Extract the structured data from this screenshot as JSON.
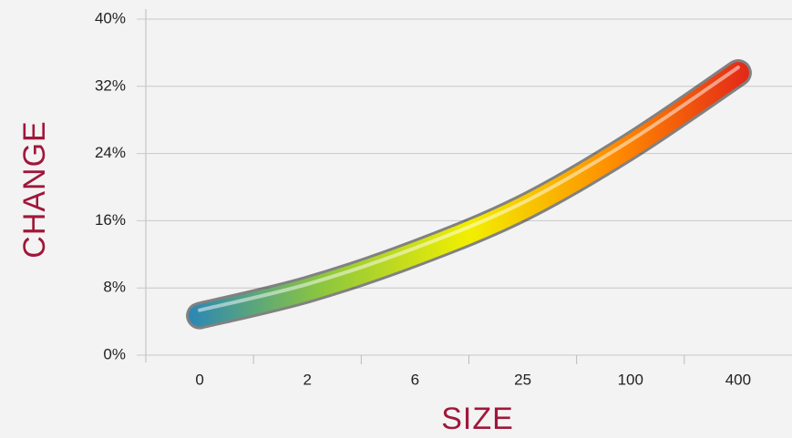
{
  "chart_data": {
    "type": "line",
    "x_label": "SIZE",
    "y_label": "CHANGE",
    "categories": [
      "0",
      "2",
      "6",
      "25",
      "100",
      "400"
    ],
    "values": [
      4.7,
      7.8,
      12.1,
      17.5,
      24.9,
      33.6
    ],
    "gradient": [
      "#1f7fc4",
      "#8cc63f",
      "#f2ef00",
      "#ff8a00",
      "#e01b1b"
    ],
    "ylim": [
      0,
      40
    ],
    "yticks": [
      {
        "value": 0,
        "label": "0%"
      },
      {
        "value": 8,
        "label": "8%"
      },
      {
        "value": 16,
        "label": "16%"
      },
      {
        "value": 24,
        "label": "24%"
      },
      {
        "value": 32,
        "label": "32%"
      },
      {
        "value": 40,
        "label": "40%"
      }
    ],
    "grid": true
  }
}
